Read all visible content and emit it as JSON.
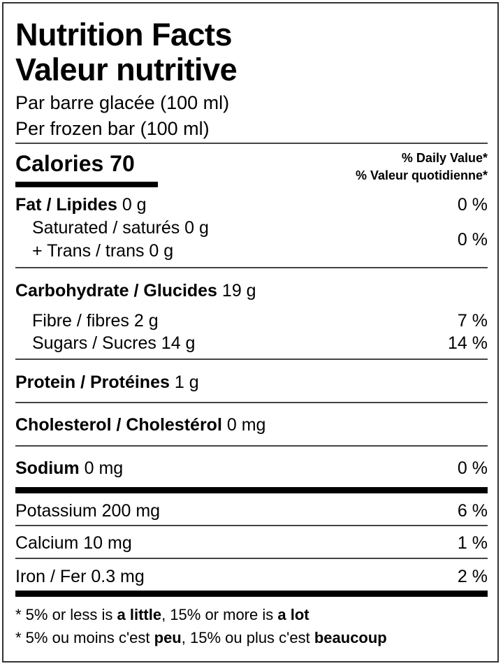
{
  "title_en": "Nutrition Facts",
  "title_fr": "Valeur nutritive",
  "serving_fr": "Par barre glacée (100 ml)",
  "serving_en": "Per frozen bar (100 ml)",
  "calories": {
    "label": "Calories",
    "value": "70"
  },
  "dv_header_en": "% Daily Value*",
  "dv_header_fr": "% Valeur quotidienne*",
  "rows": {
    "fat": {
      "label": "Fat / Lipides",
      "amount": "0 g",
      "dv": "0 %"
    },
    "saturated": {
      "label": "Saturated / saturés 0 g"
    },
    "trans": {
      "label": "+ Trans / trans 0 g"
    },
    "sat_trans_dv": "0 %",
    "carb": {
      "label": "Carbohydrate / Glucides",
      "amount": "19 g"
    },
    "fibre": {
      "label": "Fibre / fibres 2 g",
      "dv": "7 %"
    },
    "sugars": {
      "label": "Sugars / Sucres 14 g",
      "dv": "14 %"
    },
    "protein": {
      "label": "Protein / Protéines",
      "amount": "1 g"
    },
    "cholesterol": {
      "label": "Cholesterol / Cholestérol",
      "amount": "0 mg"
    },
    "sodium": {
      "label": "Sodium",
      "amount": "0 mg",
      "dv": "0 %"
    },
    "potassium": {
      "label": "Potassium 200 mg",
      "dv": "6 %"
    },
    "calcium": {
      "label": "Calcium 10 mg",
      "dv": "1 %"
    },
    "iron": {
      "label": "Iron / Fer 0.3 mg",
      "dv": "2 %"
    }
  },
  "footnote_en": {
    "a": "* 5% or less is ",
    "b": "a little",
    "c": ", 15% or more is ",
    "d": "a lot"
  },
  "footnote_fr": {
    "a": "* 5% ou moins c'est ",
    "b": "peu",
    "c": ", 15% ou plus c'est ",
    "d": "beaucoup"
  }
}
